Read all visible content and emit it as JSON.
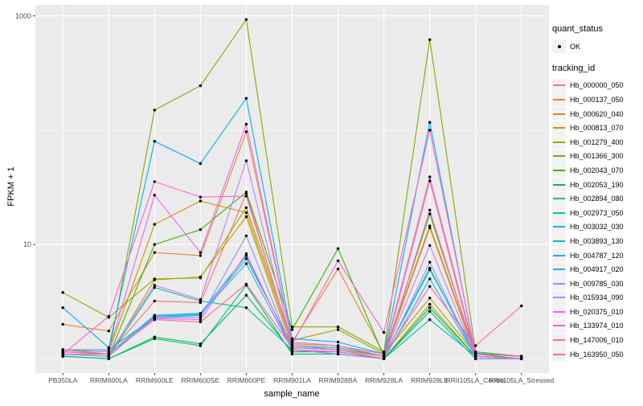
{
  "figure": {
    "background": "#FFFFFF",
    "panel_bg": "#EBEBEB",
    "grid_color": "#FFFFFF",
    "tick_color": "#333333",
    "tick_label_color": "#4D4D4D",
    "point_color": "#000000"
  },
  "legend": {
    "quant_status_title": "quant_status",
    "ok_label": "OK",
    "tracking_title": "tracking_id"
  },
  "chart_data": {
    "type": "line",
    "title": "",
    "xlabel": "sample_name",
    "ylabel": "FPKM + 1",
    "y_scale": "log10",
    "ylim": [
      0.75,
      1250
    ],
    "legend_position": "right",
    "grid": true,
    "y_major_ticks": [
      {
        "label": "1000",
        "value": 1000
      },
      {
        "label": "10",
        "value": 10
      }
    ],
    "y_minor_gridlines": [
      100,
      1
    ],
    "quant_status": "OK",
    "categories": [
      "PB350LA",
      "RRIM600LA",
      "RRIM600LE",
      "RRIM600SE",
      "RRIM600PE",
      "RRIM901LA",
      "RRIM928BA",
      "RRIM928LA",
      "RRIM928LE",
      "RRII105LA_Control",
      "RRII105LA_Stressed"
    ],
    "series": [
      {
        "name": "Hb_000000_050",
        "color": "#F8766D",
        "values": [
          1.15,
          1.1,
          3.2,
          3.1,
          28,
          1.3,
          1.25,
          1.05,
          36,
          1.05,
          1
        ]
      },
      {
        "name": "Hb_000137_050",
        "color": "#EA8331",
        "values": [
          2,
          1.75,
          8.5,
          8,
          97,
          1.4,
          6.1,
          1.1,
          14.5,
          1.1,
          1.05
        ]
      },
      {
        "name": "Hb_000620_040",
        "color": "#D89000",
        "values": [
          1.2,
          1.15,
          15,
          24,
          19,
          1.35,
          1.3,
          1.05,
          14,
          1.05,
          1
        ]
      },
      {
        "name": "Hb_000813_070",
        "color": "#C09B00",
        "values": [
          1.1,
          1.05,
          4.9,
          5.2,
          17.5,
          1.25,
          1.2,
          1,
          3,
          1.05,
          1
        ]
      },
      {
        "name": "Hb_001279_400",
        "color": "#A3A500",
        "values": [
          3.8,
          2.3,
          5,
          5.1,
          21,
          1.45,
          1.8,
          1.1,
          3.4,
          1.1,
          1.05
        ]
      },
      {
        "name": "Hb_001366_300",
        "color": "#7CAE00",
        "values": [
          1.2,
          1.1,
          150,
          245,
          930,
          1.9,
          1.9,
          1.15,
          620,
          1.15,
          1.05
        ]
      },
      {
        "name": "Hb_002043_070",
        "color": "#39B600",
        "values": [
          1.1,
          1.05,
          10,
          13.5,
          28.7,
          1.8,
          9.2,
          1.05,
          18.5,
          1.1,
          1
        ]
      },
      {
        "name": "Hb_002053_190",
        "color": "#00BB4E",
        "values": [
          1.05,
          1,
          1.55,
          1.35,
          3.6,
          1.15,
          1.15,
          1,
          2.8,
          1.05,
          1
        ]
      },
      {
        "name": "Hb_002894_080",
        "color": "#00BF7D",
        "values": [
          1.05,
          1,
          1.5,
          1.3,
          4.4,
          1.1,
          1.1,
          1,
          2.6,
          1,
          1
        ]
      },
      {
        "name": "Hb_002973_050",
        "color": "#00C1A3",
        "values": [
          1.1,
          1.05,
          4.2,
          3.2,
          2.8,
          1.2,
          1.1,
          1,
          2.2,
          1.05,
          1
        ]
      },
      {
        "name": "Hb_003032_030",
        "color": "#00BFC4",
        "values": [
          1.15,
          1.1,
          2.4,
          2.5,
          8,
          1.25,
          1.2,
          1.05,
          6.2,
          1.05,
          1
        ]
      },
      {
        "name": "Hb_003893_130",
        "color": "#00BAE0",
        "values": [
          1.2,
          1.2,
          2.3,
          2.4,
          7.5,
          1.3,
          1.25,
          1.05,
          6,
          1.12,
          1.05
        ]
      },
      {
        "name": "Hb_004787_120",
        "color": "#00B0F6",
        "values": [
          2.8,
          1.25,
          80,
          51,
          190,
          1.5,
          1.4,
          1.1,
          117,
          1.05,
          1
        ]
      },
      {
        "name": "Hb_004917_020",
        "color": "#35A2FF",
        "values": [
          1.1,
          1.05,
          2.35,
          2.45,
          6.8,
          1.2,
          1.15,
          1,
          5,
          1.05,
          1
        ]
      },
      {
        "name": "Hb_009785_030",
        "color": "#9590FF",
        "values": [
          1.1,
          1.05,
          2.3,
          2.3,
          11.9,
          1.2,
          1.1,
          1,
          7,
          1,
          1
        ]
      },
      {
        "name": "Hb_015934_090",
        "color": "#C77CFF",
        "values": [
          1.15,
          1.1,
          4.4,
          3.3,
          54,
          1.3,
          1.2,
          1.05,
          9.8,
          1.05,
          1
        ]
      },
      {
        "name": "Hb_020375_010",
        "color": "#E76BF3",
        "values": [
          1.2,
          1.15,
          27,
          8.5,
          113,
          1.4,
          1.3,
          1.1,
          39,
          1.1,
          1.05
        ]
      },
      {
        "name": "Hb_133974_010",
        "color": "#FA62DB",
        "values": [
          1.1,
          1.1,
          2.25,
          2.2,
          8.3,
          1.2,
          1.15,
          1,
          20,
          1.05,
          1
        ]
      },
      {
        "name": "Hb_147006_010",
        "color": "#FF61CC",
        "values": [
          1.1,
          2.35,
          35.5,
          26,
          26.5,
          1.35,
          7.2,
          1.7,
          100,
          1.1,
          1.05
        ]
      },
      {
        "name": "Hb_163950_050",
        "color": "#FF6A98",
        "values": [
          1.15,
          1.1,
          2.2,
          2.1,
          4.5,
          1.25,
          1.2,
          1.05,
          4.3,
          1.3,
          2.9
        ]
      }
    ]
  }
}
